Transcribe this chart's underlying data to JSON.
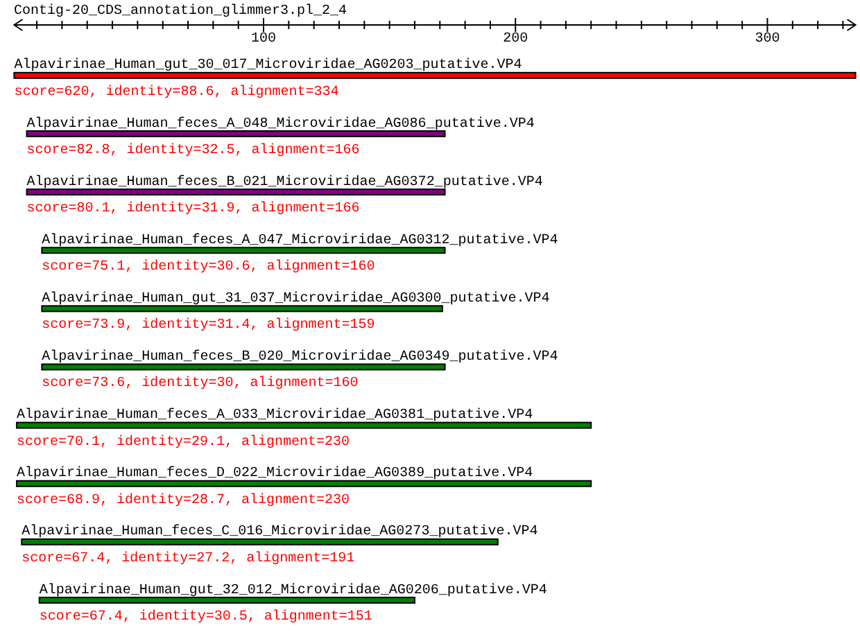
{
  "chart_data": {
    "type": "bar",
    "orientation": "horizontal",
    "title": "Contig-20_CDS_annotation_glimmer3.pl_2_4",
    "categories": [
      "Alpavirinae_Human_gut_30_017_Microviridae_AG0203_putative.VP4",
      "Alpavirinae_Human_feces_A_048_Microviridae_AG086_putative.VP4",
      "Alpavirinae_Human_feces_B_021_Microviridae_AG0372_putative.VP4",
      "Alpavirinae_Human_feces_A_047_Microviridae_AG0312_putative.VP4",
      "Alpavirinae_Human_gut_31_037_Microviridae_AG0300_putative.VP4",
      "Alpavirinae_Human_feces_B_020_Microviridae_AG0349_putative.VP4",
      "Alpavirinae_Human_feces_A_033_Microviridae_AG0381_putative.VP4",
      "Alpavirinae_Human_feces_D_022_Microviridae_AG0389_putative.VP4",
      "Alpavirinae_Human_feces_C_016_Microviridae_AG0273_putative.VP4",
      "Alpavirinae_Human_gut_32_012_Microviridae_AG0206_putative.VP4"
    ],
    "base": [
      1,
      6,
      6,
      12,
      12,
      12,
      2,
      2,
      4,
      11
    ],
    "values": [
      334,
      166,
      166,
      160,
      159,
      160,
      228,
      228,
      189,
      149
    ],
    "colors": [
      "#ff0000",
      "#800080",
      "#800080",
      "#008000",
      "#008000",
      "#008000",
      "#008000",
      "#008000",
      "#008000",
      "#008000"
    ],
    "annotations": [
      {
        "text": "score=620, identity=88.6, alignment=334",
        "x": 1,
        "y": "Alpavirinae_Human_gut_30_017_Microviridae_AG0203_putative.VP4"
      },
      {
        "text": "score=82.8, identity=32.5, alignment=166",
        "x": 6,
        "y": "Alpavirinae_Human_feces_A_048_Microviridae_AG086_putative.VP4"
      },
      {
        "text": "score=80.1, identity=31.9, alignment=166",
        "x": 6,
        "y": "Alpavirinae_Human_feces_B_021_Microviridae_AG0372_putative.VP4"
      },
      {
        "text": "score=75.1, identity=30.6, alignment=160",
        "x": 12,
        "y": "Alpavirinae_Human_feces_A_047_Microviridae_AG0312_putative.VP4"
      },
      {
        "text": "score=73.9, identity=31.4, alignment=159",
        "x": 12,
        "y": "Alpavirinae_Human_gut_31_037_Microviridae_AG0300_putative.VP4"
      },
      {
        "text": "score=73.6, identity=30, alignment=160",
        "x": 12,
        "y": "Alpavirinae_Human_feces_B_020_Microviridae_AG0349_putative.VP4"
      },
      {
        "text": "score=70.1, identity=29.1, alignment=230",
        "x": 2,
        "y": "Alpavirinae_Human_feces_A_033_Microviridae_AG0381_putative.VP4"
      },
      {
        "text": "score=68.9, identity=28.7, alignment=230",
        "x": 2,
        "y": "Alpavirinae_Human_feces_D_022_Microviridae_AG0389_putative.VP4"
      },
      {
        "text": "score=67.4, identity=27.2, alignment=191",
        "x": 4,
        "y": "Alpavirinae_Human_feces_C_016_Microviridae_AG0273_putative.VP4"
      },
      {
        "text": "score=67.4, identity=30.5, alignment=151",
        "x": 11,
        "y": "Alpavirinae_Human_gut_32_012_Microviridae_AG0206_putative.VP4"
      }
    ],
    "xlim": [
      1,
      335
    ],
    "xticks": [
      {
        "value": 10,
        "label": null
      },
      {
        "value": 20,
        "label": null
      },
      {
        "value": 30,
        "label": null
      },
      {
        "value": 40,
        "label": null
      },
      {
        "value": 50,
        "label": null
      },
      {
        "value": 60,
        "label": null
      },
      {
        "value": 70,
        "label": null
      },
      {
        "value": 80,
        "label": null
      },
      {
        "value": 90,
        "label": null
      },
      100,
      {
        "value": 110,
        "label": null
      },
      {
        "value": 120,
        "label": null
      },
      {
        "value": 130,
        "label": null
      },
      {
        "value": 140,
        "label": null
      },
      {
        "value": 150,
        "label": null
      },
      {
        "value": 160,
        "label": null
      },
      {
        "value": 170,
        "label": null
      },
      {
        "value": 180,
        "label": null
      },
      {
        "value": 190,
        "label": null
      },
      200,
      {
        "value": 210,
        "label": null
      },
      {
        "value": 220,
        "label": null
      },
      {
        "value": 230,
        "label": null
      },
      {
        "value": 240,
        "label": null
      },
      {
        "value": 250,
        "label": null
      },
      {
        "value": 260,
        "label": null
      },
      {
        "value": 270,
        "label": null
      },
      {
        "value": 280,
        "label": null
      },
      {
        "value": 290,
        "label": null
      },
      300,
      {
        "value": 310,
        "label": null
      },
      {
        "value": 320,
        "label": null
      },
      {
        "value": 330,
        "label": null
      }
    ]
  }
}
